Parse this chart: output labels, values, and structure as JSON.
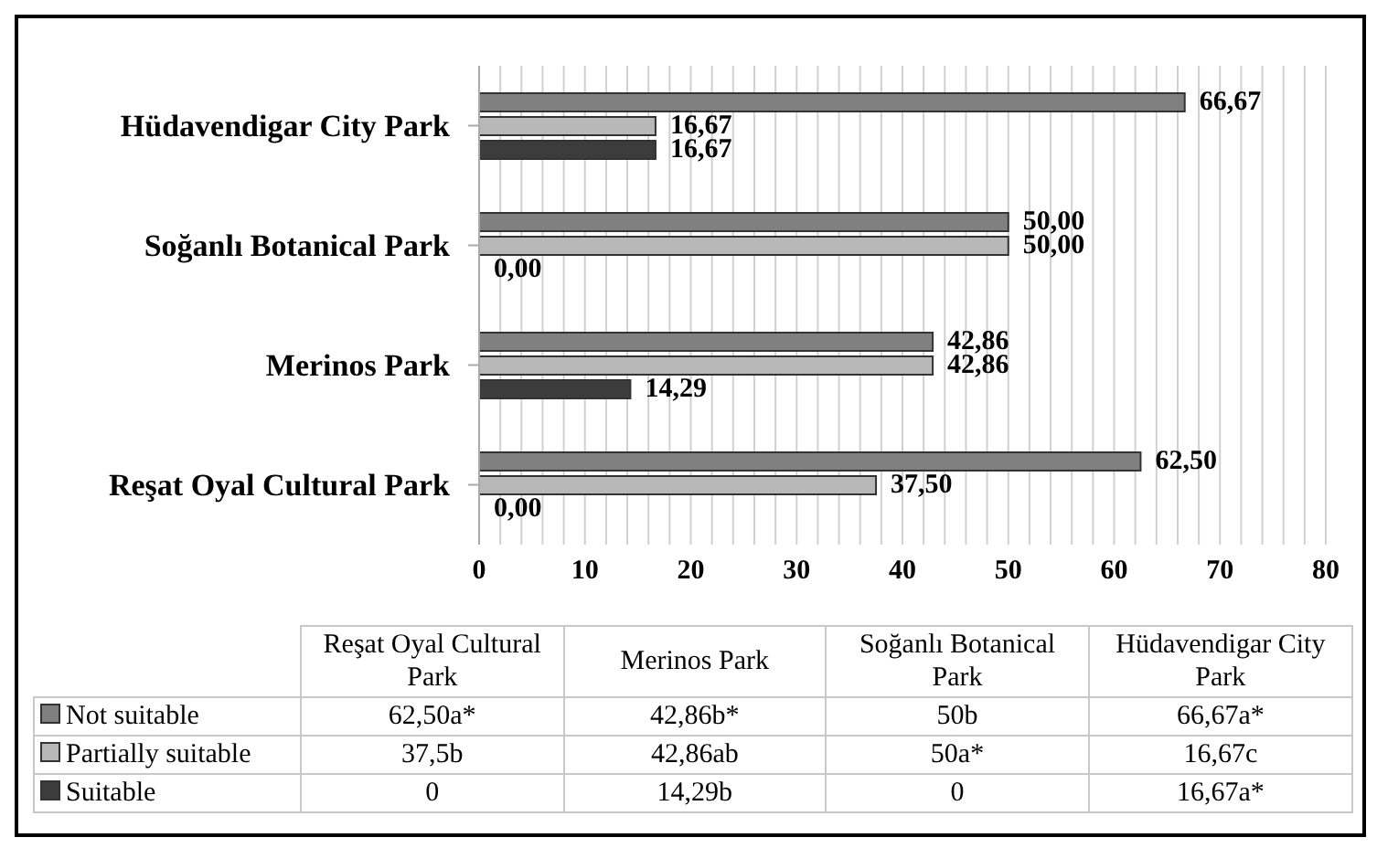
{
  "chart_data": {
    "type": "bar",
    "orientation": "horizontal",
    "categories": [
      "Hüdavendigar City Park",
      "Soğanlı Botanical Park",
      "Merinos Park",
      "Reşat Oyal Cultural Park"
    ],
    "series": [
      {
        "name": "Not suitable",
        "color": "#808080",
        "values": [
          66.67,
          50.0,
          42.86,
          62.5
        ],
        "value_labels": [
          "66,67",
          "50,00",
          "42,86",
          "62,50"
        ]
      },
      {
        "name": "Partially suitable",
        "color": "#b8b8b8",
        "values": [
          16.67,
          50.0,
          42.86,
          37.5
        ],
        "value_labels": [
          "16,67",
          "50,00",
          "42,86",
          "37,50"
        ]
      },
      {
        "name": "Suitable",
        "color": "#3c3c3c",
        "values": [
          16.67,
          0.0,
          14.29,
          0.0
        ],
        "value_labels": [
          "16,67",
          "0,00",
          "14,29",
          "0,00"
        ]
      }
    ],
    "xlim": [
      0,
      80
    ],
    "xticks": [
      0,
      {
        "value": 2,
        "label": null
      },
      {
        "value": 4,
        "label": null
      },
      {
        "value": 6,
        "label": null
      },
      {
        "value": 8,
        "label": null
      },
      10,
      {
        "value": 12,
        "label": null
      },
      {
        "value": 14,
        "label": null
      },
      {
        "value": 16,
        "label": null
      },
      {
        "value": 18,
        "label": null
      },
      20,
      {
        "value": 22,
        "label": null
      },
      {
        "value": 24,
        "label": null
      },
      {
        "value": 26,
        "label": null
      },
      {
        "value": 28,
        "label": null
      },
      30,
      {
        "value": 32,
        "label": null
      },
      {
        "value": 34,
        "label": null
      },
      {
        "value": 36,
        "label": null
      },
      {
        "value": 38,
        "label": null
      },
      40,
      {
        "value": 42,
        "label": null
      },
      {
        "value": 44,
        "label": null
      },
      {
        "value": 46,
        "label": null
      },
      {
        "value": 48,
        "label": null
      },
      50,
      {
        "value": 52,
        "label": null
      },
      {
        "value": 54,
        "label": null
      },
      {
        "value": 56,
        "label": null
      },
      {
        "value": 58,
        "label": null
      },
      60,
      {
        "value": 62,
        "label": null
      },
      {
        "value": 64,
        "label": null
      },
      {
        "value": 66,
        "label": null
      },
      {
        "value": 68,
        "label": null
      },
      70,
      {
        "value": 72,
        "label": null
      },
      {
        "value": 74,
        "label": null
      },
      {
        "value": 76,
        "label": null
      },
      {
        "value": 78,
        "label": null
      },
      80
    ],
    "grid": "x",
    "legend": "bottom",
    "annotations": [
      "62,50a*",
      "42,86b*",
      "50b",
      "66,67a*",
      "37,5b",
      "42,86ab",
      "50a*",
      "16,67c",
      "0",
      "14,29b",
      "0",
      "16,67a*"
    ]
  }
}
